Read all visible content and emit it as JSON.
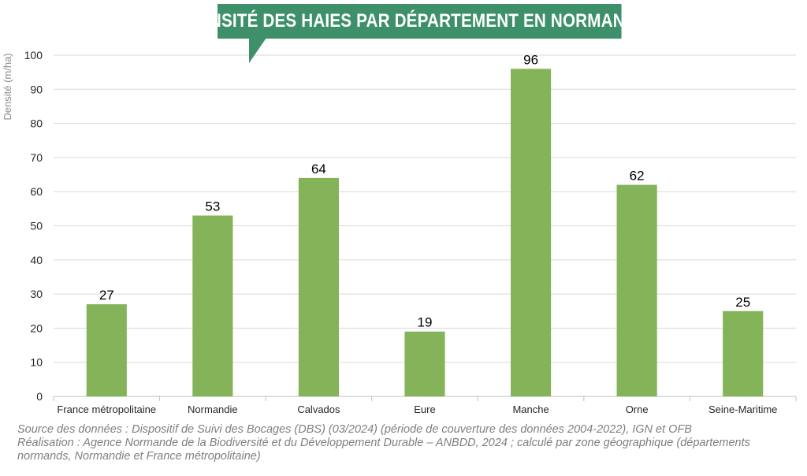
{
  "title": "DENSITÉ DES HAIES PAR DÉPARTEMENT EN NORMANDIE",
  "footer": {
    "source": "Source des données : Dispositif de Suivi des Bocages (DBS) (03/2024) (période de couverture des données 2004-2022), IGN et OFB",
    "realisation": "Réalisation : Agence Normande de la Biodiversité et du Développement Durable – ANBDD, 2024 ; calculé par zone géographique (départements normands, Normandie et France métropolitaine)"
  },
  "colors": {
    "bar": "#84b359",
    "title_bg": "#3d9069",
    "grid": "#d9d9d9",
    "axis_text": "#595959"
  },
  "chart_data": {
    "type": "bar",
    "title": "DENSITÉ DES HAIES PAR DÉPARTEMENT EN NORMANDIE",
    "xlabel": "",
    "ylabel": "Densité (m/ha)",
    "categories": [
      "France métropolitaine",
      "Normandie",
      "Calvados",
      "Eure",
      "Manche",
      "Orne",
      "Seine-Maritime"
    ],
    "values": [
      27,
      53,
      64,
      19,
      96,
      62,
      25
    ],
    "data_labels": [
      "27",
      "53",
      "64",
      "19",
      "96",
      "62",
      "25"
    ],
    "ylim": [
      0,
      100
    ],
    "yticks": [
      0,
      10,
      20,
      30,
      40,
      50,
      60,
      70,
      80,
      90,
      100
    ],
    "grid": true,
    "legend": "none"
  }
}
